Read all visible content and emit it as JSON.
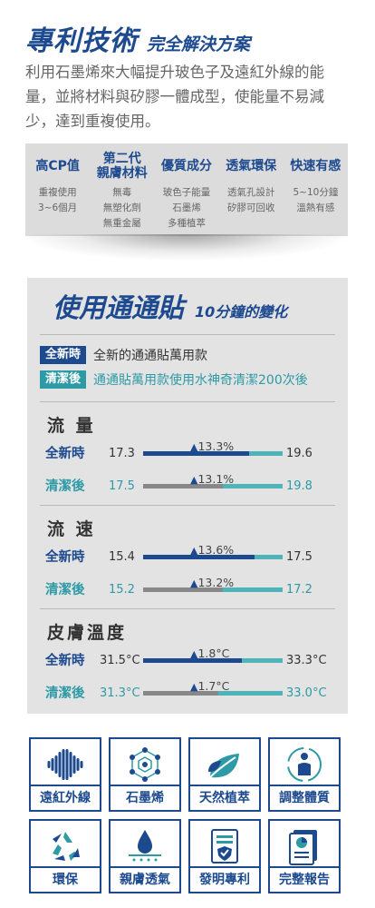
{
  "header": {
    "title": "專利技術",
    "subtitle": "完全解決方案",
    "intro": "利用石墨烯來大幅提升玻色子及遠紅外線的能量，並將材料與矽膠一體成型，使能量不易減少，達到重複使用。"
  },
  "features": [
    {
      "title": "高CP值",
      "lines": [
        "重複使用",
        "3~6個月"
      ]
    },
    {
      "title": "第二代\n親膚材料",
      "lines": [
        "無毒",
        "無塑化劑",
        "無重金屬"
      ]
    },
    {
      "title": "優質成分",
      "lines": [
        "玻色子能量",
        "石墨烯",
        "多種植萃"
      ]
    },
    {
      "title": "透氣環保",
      "lines": [
        "透氣孔設計",
        "矽膠可回收"
      ]
    },
    {
      "title": "快速有感",
      "lines": [
        "5~10分鐘",
        "溫熱有感"
      ]
    }
  ],
  "panel": {
    "title": "使用通通貼",
    "subtitle": "10分鐘的變化",
    "legend": [
      {
        "tag": "全新時",
        "text": "全新的通通貼萬用款",
        "color": "#1d4a8f"
      },
      {
        "tag": "清潔後",
        "text": "通通貼萬用款使用水神奇清潔200次後",
        "color": "#2d9aa6"
      }
    ],
    "metrics": [
      {
        "title": "流 量",
        "rows": [
          {
            "label": "全新時",
            "start": "17.3",
            "end": "19.6",
            "pct": "13.3%",
            "fill": 0.76,
            "color": "#1d4a8f"
          },
          {
            "label": "清潔後",
            "start": "17.5",
            "end": "19.8",
            "pct": "13.1%",
            "fill": 0.57,
            "color": "#2d9aa6"
          }
        ]
      },
      {
        "title": "流 速",
        "rows": [
          {
            "label": "全新時",
            "start": "15.4",
            "end": "17.5",
            "pct": "13.6%",
            "fill": 0.8,
            "color": "#1d4a8f"
          },
          {
            "label": "清潔後",
            "start": "15.2",
            "end": "17.2",
            "pct": "13.2%",
            "fill": 0.57,
            "color": "#2d9aa6"
          }
        ]
      },
      {
        "title": "皮膚溫度",
        "rows": [
          {
            "label": "全新時",
            "start": "31.5°C",
            "end": "33.3°C",
            "pct": "1.8°C",
            "fill": 0.71,
            "color": "#1d4a8f"
          },
          {
            "label": "清潔後",
            "start": "31.3°C",
            "end": "33.0°C",
            "pct": "1.7°C",
            "fill": 0.54,
            "color": "#2d9aa6"
          }
        ]
      }
    ]
  },
  "icons": [
    {
      "label": "遠紅外線",
      "icon": "wave-icon"
    },
    {
      "label": "石墨烯",
      "icon": "molecule-icon"
    },
    {
      "label": "天然植萃",
      "icon": "leaf-icon"
    },
    {
      "label": "調整體質",
      "icon": "person-cycle-icon"
    },
    {
      "label": "環保",
      "icon": "recycle-icon"
    },
    {
      "label": "親膚透氣",
      "icon": "skin-drop-icon"
    },
    {
      "label": "發明專利",
      "icon": "patent-icon"
    },
    {
      "label": "完整報告",
      "icon": "report-icon"
    }
  ],
  "colors": {
    "navy": "#1d4a8f",
    "teal": "#2d9aa6",
    "bar_rest": "#4fb3ba",
    "bar_gray": "#888888"
  }
}
